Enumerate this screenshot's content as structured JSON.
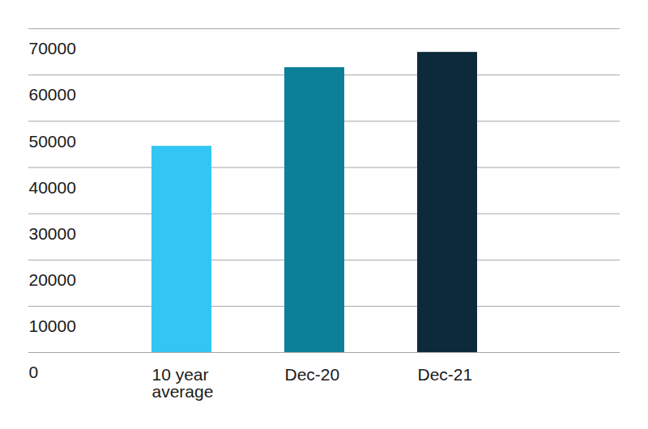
{
  "chart_data": {
    "type": "bar",
    "categories": [
      "10 year average",
      "Dec-20",
      "Dec-21"
    ],
    "values": [
      44600,
      61600,
      64900
    ],
    "colors": [
      "#33c6f4",
      "#0d8099",
      "#0c2a3a"
    ],
    "ylim": [
      0,
      70000
    ],
    "yticks": [
      0,
      10000,
      20000,
      30000,
      40000,
      50000,
      60000,
      70000
    ],
    "grid": true
  }
}
